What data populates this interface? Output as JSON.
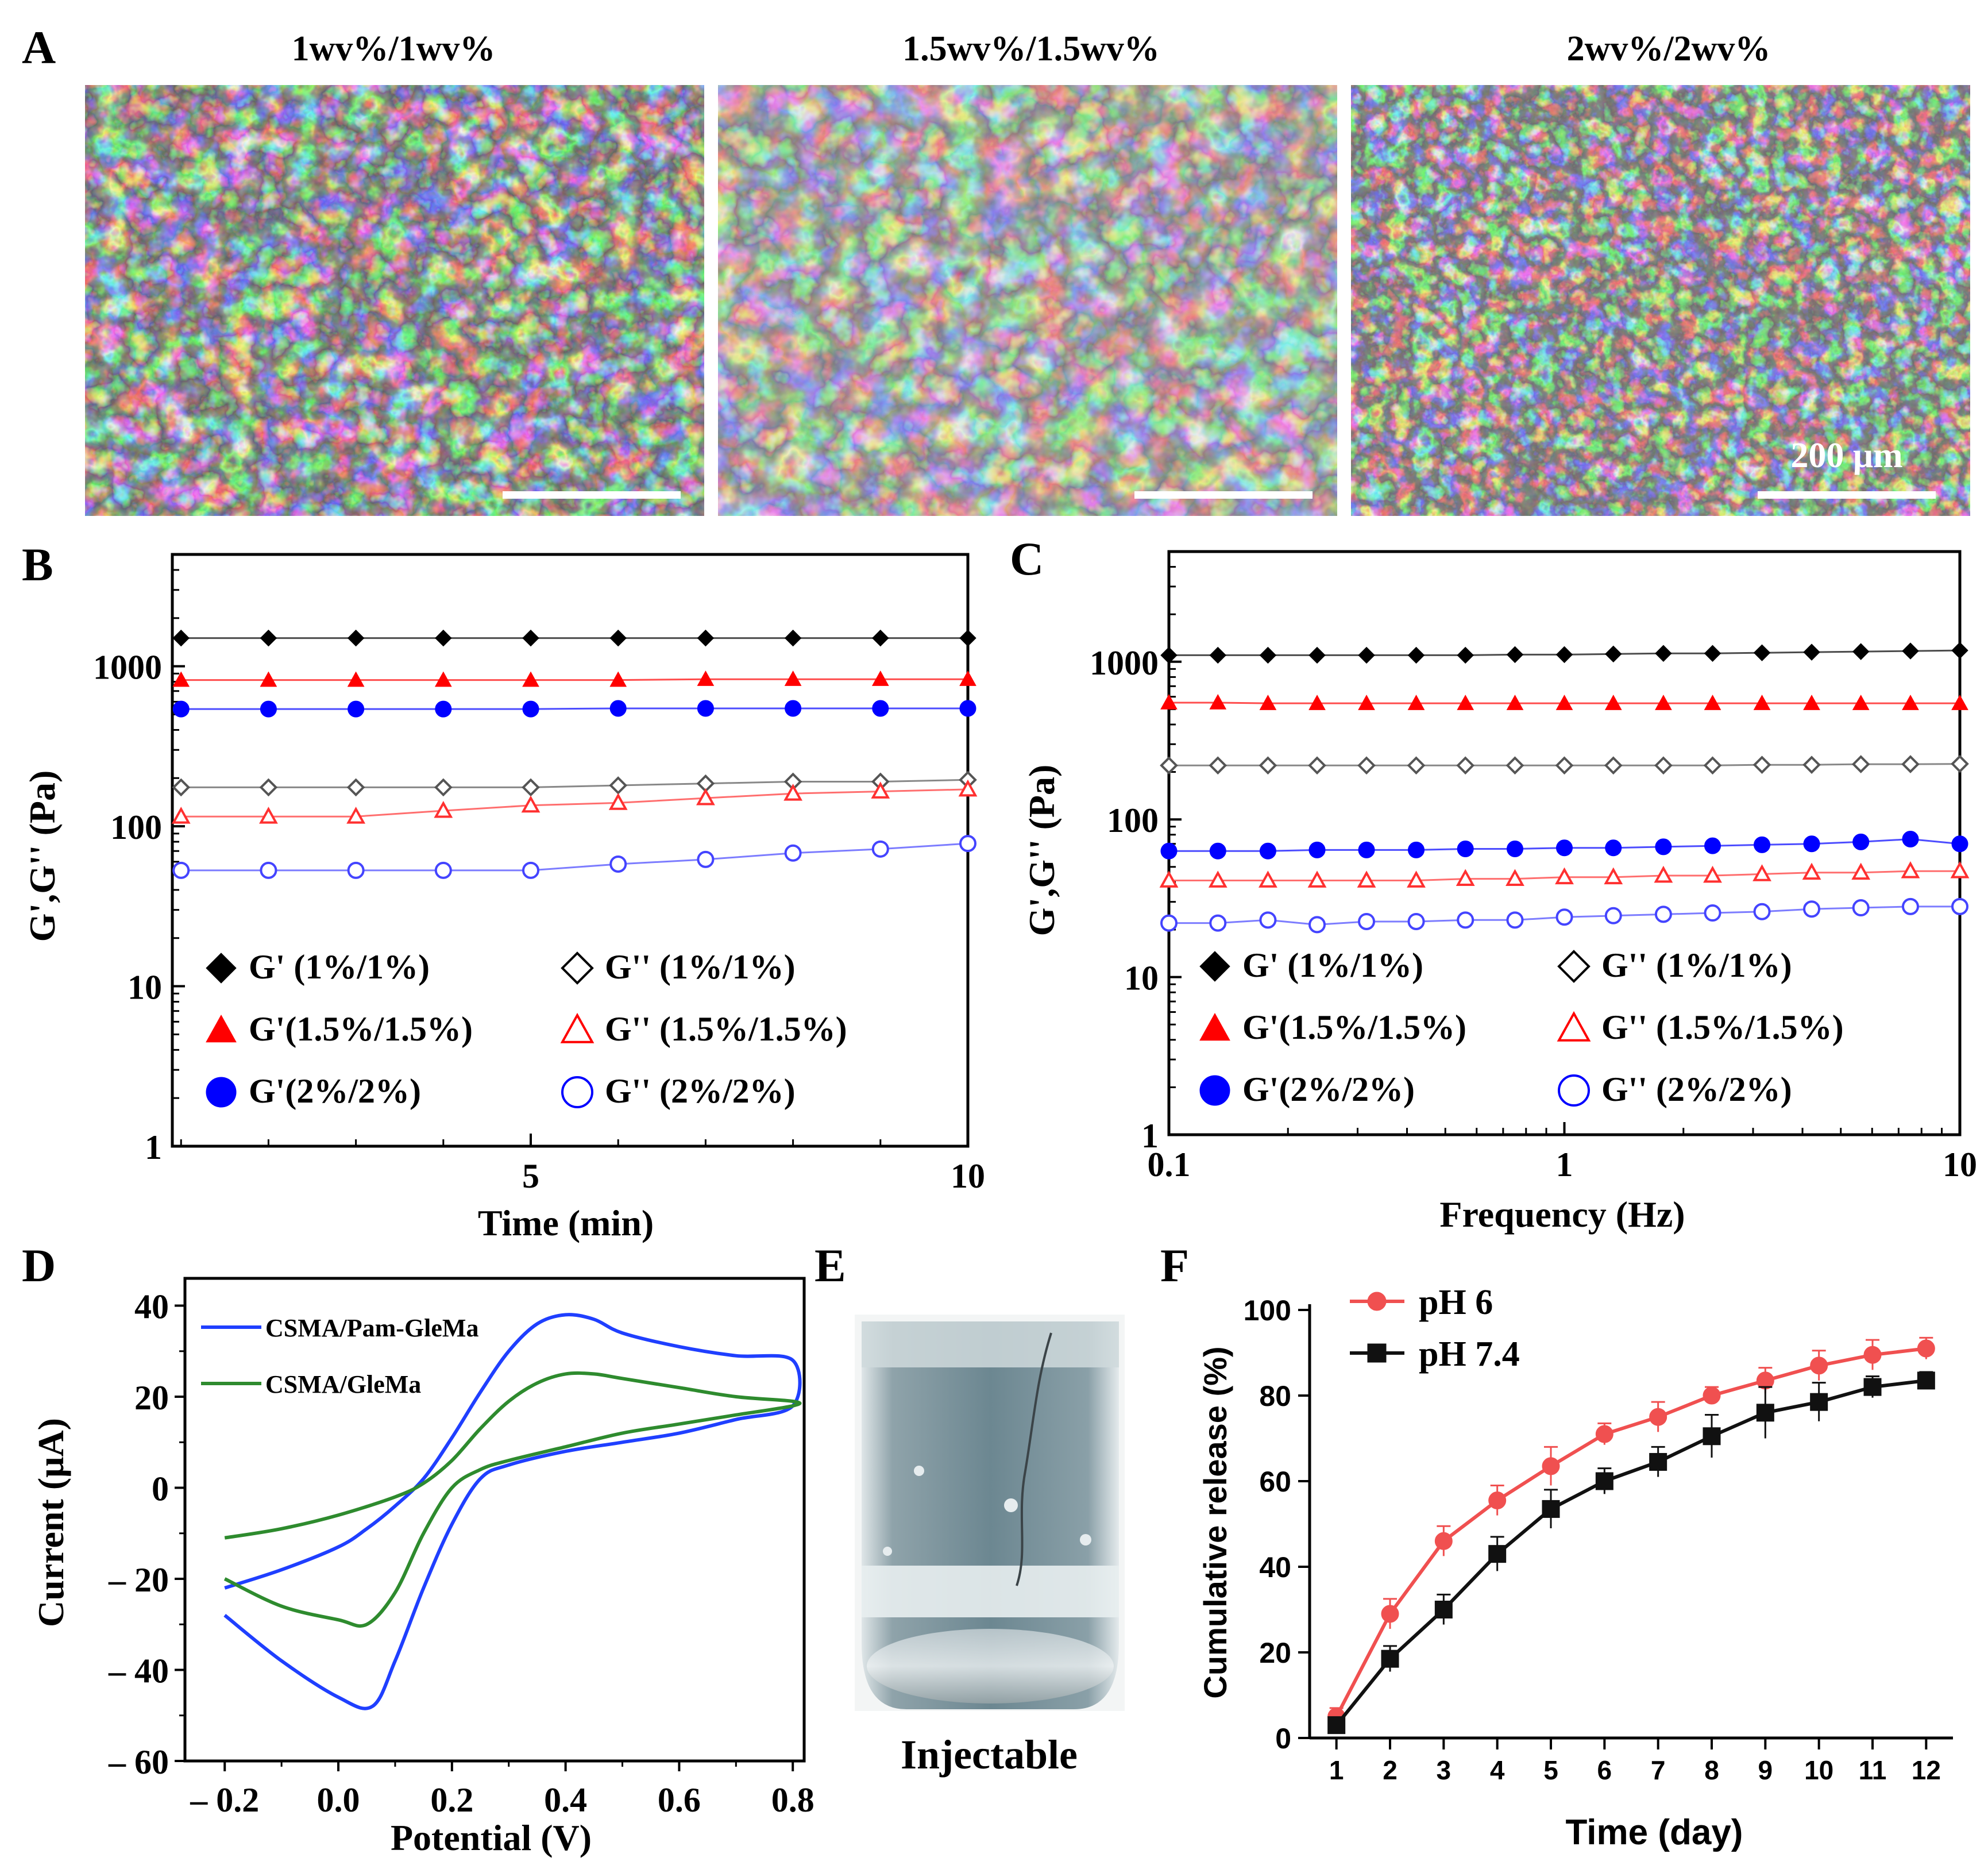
{
  "panel_labels": [
    "A",
    "B",
    "C",
    "D",
    "E",
    "F"
  ],
  "panel_a": {
    "titles": [
      "1wv%/1wv%",
      "1.5wv%/1.5wv%",
      "2wv%/2wv%"
    ],
    "scale_label": "200 μm"
  },
  "panel_e": {
    "caption": "Injectable"
  },
  "colors": {
    "black": "#000000",
    "red": "#ff0000",
    "blue": "#0000ff",
    "cv_blue": "#1f3fff",
    "cv_green": "#2e8b2e",
    "f_red": "#f05050",
    "f_black": "#111111"
  },
  "chart_data": [
    {
      "panel": "B",
      "type": "line",
      "xlabel": "Time (min)",
      "ylabel": "G',G'' (Pa)",
      "xlim": [
        0.9,
        10
      ],
      "ylim": [
        1,
        5000
      ],
      "y_scale": "log",
      "xticks": [
        5,
        10
      ],
      "yticks": [
        1,
        10,
        100,
        1000
      ],
      "legend": [
        "G' (1%/1%)",
        "G'' (1%/1%)",
        "G'(1.5%/1.5%)",
        "G'' (1.5%/1.5%)",
        "G'(2%/2%)",
        "G'' (2%/2%)"
      ],
      "x": [
        1,
        2,
        3,
        4,
        5,
        6,
        7,
        8,
        9,
        10
      ],
      "series": [
        {
          "name": "G' (1%/1%)",
          "marker": "diamond",
          "filled": true,
          "color": "#000000",
          "values": [
            1500,
            1500,
            1500,
            1500,
            1500,
            1500,
            1500,
            1500,
            1500,
            1500
          ]
        },
        {
          "name": "G'(1.5%/1.5%)",
          "marker": "triangle",
          "filled": true,
          "color": "#ff0000",
          "values": [
            820,
            820,
            820,
            820,
            820,
            820,
            830,
            830,
            830,
            830
          ]
        },
        {
          "name": "G'(2%/2%)",
          "marker": "circle",
          "filled": true,
          "color": "#0000ff",
          "values": [
            540,
            540,
            540,
            540,
            540,
            545,
            545,
            545,
            545,
            545
          ]
        },
        {
          "name": "G'' (1%/1%)",
          "marker": "diamond",
          "filled": false,
          "color": "#555555",
          "values": [
            175,
            175,
            175,
            175,
            175,
            180,
            185,
            190,
            190,
            195
          ]
        },
        {
          "name": "G'' (1.5%/1.5%)",
          "marker": "triangle",
          "filled": false,
          "color": "#ff3030",
          "values": [
            115,
            115,
            115,
            125,
            135,
            140,
            150,
            160,
            165,
            170
          ]
        },
        {
          "name": "G'' (2%/2%)",
          "marker": "circle",
          "filled": false,
          "color": "#4444ff",
          "values": [
            53,
            53,
            53,
            53,
            53,
            58,
            62,
            68,
            72,
            78
          ]
        }
      ]
    },
    {
      "panel": "C",
      "type": "line",
      "xlabel": "Frequency (Hz)",
      "ylabel": "G',G'' (Pa)",
      "xlim": [
        0.1,
        10
      ],
      "ylim": [
        1,
        5000
      ],
      "x_scale": "log",
      "y_scale": "log",
      "xticks": [
        0.1,
        1,
        10
      ],
      "yticks": [
        1,
        10,
        100,
        1000
      ],
      "legend": [
        "G' (1%/1%)",
        "G'' (1%/1%)",
        "G'(1.5%/1.5%)",
        "G'' (1.5%/1.5%)",
        "G'(2%/2%)",
        "G'' (2%/2%)"
      ],
      "x": [
        0.1,
        0.133,
        0.178,
        0.237,
        0.316,
        0.422,
        0.562,
        0.75,
        1.0,
        1.33,
        1.78,
        2.37,
        3.16,
        4.22,
        5.62,
        7.5,
        10
      ],
      "series": [
        {
          "name": "G' (1%/1%)",
          "marker": "diamond",
          "filled": true,
          "color": "#000000",
          "values": [
            1100,
            1100,
            1100,
            1100,
            1100,
            1100,
            1100,
            1110,
            1110,
            1120,
            1130,
            1130,
            1140,
            1150,
            1160,
            1170,
            1180
          ]
        },
        {
          "name": "G'(1.5%/1.5%)",
          "marker": "triangle",
          "filled": true,
          "color": "#ff0000",
          "values": [
            550,
            550,
            545,
            545,
            545,
            545,
            545,
            545,
            545,
            545,
            545,
            545,
            545,
            545,
            545,
            545,
            545
          ]
        },
        {
          "name": "G'' (1%/1%)",
          "marker": "diamond",
          "filled": false,
          "color": "#555555",
          "values": [
            220,
            220,
            220,
            220,
            220,
            220,
            220,
            220,
            220,
            220,
            220,
            220,
            222,
            222,
            224,
            224,
            225
          ]
        },
        {
          "name": "G'(2%/2%)",
          "marker": "circle",
          "filled": true,
          "color": "#0000ff",
          "values": [
            63,
            63,
            63,
            64,
            64,
            64,
            65,
            65,
            66,
            66,
            67,
            68,
            69,
            70,
            72,
            75,
            70
          ]
        },
        {
          "name": "G'' (1.5%/1.5%)",
          "marker": "triangle",
          "filled": false,
          "color": "#ff3030",
          "values": [
            41,
            41,
            41,
            41,
            41,
            41,
            42,
            42,
            43,
            43,
            44,
            44,
            45,
            46,
            46,
            47,
            47
          ]
        },
        {
          "name": "G'' (2%/2%)",
          "marker": "circle",
          "filled": false,
          "color": "#4444ff",
          "values": [
            22,
            22,
            23,
            21.5,
            22.5,
            22.5,
            23,
            23,
            24,
            24.5,
            25,
            25.5,
            26,
            27,
            27.5,
            28,
            28
          ]
        }
      ]
    },
    {
      "panel": "D",
      "type": "line",
      "xlabel": "Potential (V)",
      "ylabel": "Current (μA)",
      "xlim": [
        -0.27,
        0.82
      ],
      "ylim": [
        -60,
        46
      ],
      "xticks": [
        -0.2,
        0.0,
        0.2,
        0.4,
        0.6,
        0.8
      ],
      "xtick_labels": [
        "– 0.2",
        "0.0",
        "0.2",
        "0.4",
        "0.6",
        "0.8"
      ],
      "yticks": [
        -60,
        -40,
        -20,
        0,
        20,
        40
      ],
      "ytick_labels": [
        "– 60",
        "– 40",
        "– 20",
        "0",
        "20",
        "40"
      ],
      "series": [
        {
          "name": "CSMA/Pam-GleMa",
          "color": "#1f3fff",
          "x": [
            -0.2,
            -0.1,
            0.0,
            0.05,
            0.1,
            0.15,
            0.2,
            0.25,
            0.3,
            0.35,
            0.4,
            0.45,
            0.5,
            0.6,
            0.7,
            0.8,
            0.8,
            0.7,
            0.6,
            0.5,
            0.4,
            0.3,
            0.25,
            0.2,
            0.15,
            0.1,
            0.06,
            0.0,
            -0.1,
            -0.2
          ],
          "y": [
            -22,
            -18,
            -13,
            -9,
            -4,
            2,
            11,
            21,
            30,
            36,
            38,
            37,
            34,
            31,
            29,
            28,
            18,
            15,
            12,
            10,
            8,
            5,
            2,
            -8,
            -22,
            -38,
            -48,
            -46,
            -38,
            -28
          ]
        },
        {
          "name": "CSMA/GleMa",
          "color": "#2e8b2e",
          "x": [
            -0.2,
            -0.1,
            0.0,
            0.1,
            0.15,
            0.2,
            0.25,
            0.3,
            0.35,
            0.4,
            0.45,
            0.5,
            0.6,
            0.7,
            0.8,
            0.8,
            0.7,
            0.6,
            0.5,
            0.4,
            0.3,
            0.25,
            0.2,
            0.15,
            0.1,
            0.05,
            0.0,
            -0.1,
            -0.2
          ],
          "y": [
            -11,
            -9,
            -6,
            -2,
            1,
            6,
            13,
            19,
            23,
            25,
            25,
            24,
            22,
            20,
            19,
            18,
            16,
            14,
            12,
            9,
            6,
            4,
            0,
            -10,
            -23,
            -30,
            -29,
            -26,
            -20
          ]
        }
      ]
    },
    {
      "panel": "F",
      "type": "line",
      "xlabel": "Time (day)",
      "ylabel": "Cumulative release  (%)",
      "xlim": [
        0.5,
        12.5
      ],
      "ylim": [
        0,
        100
      ],
      "xticks": [
        1,
        2,
        3,
        4,
        5,
        6,
        7,
        8,
        9,
        10,
        11,
        12
      ],
      "yticks": [
        0,
        20,
        40,
        60,
        80,
        100
      ],
      "x": [
        1,
        2,
        3,
        4,
        5,
        6,
        7,
        8,
        9,
        10,
        11,
        12
      ],
      "series": [
        {
          "name": "pH 6",
          "marker": "circle",
          "color": "#f05050",
          "values": [
            5,
            29,
            46,
            55.5,
            63.5,
            71,
            75,
            80,
            83.5,
            87,
            89.5,
            91
          ],
          "errors": [
            2,
            3.5,
            3.5,
            3.5,
            4.5,
            2.5,
            3.5,
            2,
            3,
            3.5,
            3.5,
            2.5
          ]
        },
        {
          "name": "pH 7.4",
          "marker": "square",
          "color": "#111111",
          "values": [
            3,
            18.5,
            30,
            43,
            53.5,
            60,
            64.5,
            70.5,
            76,
            78.5,
            82,
            83.5
          ],
          "errors": [
            1.5,
            3,
            3.5,
            4,
            4.5,
            3,
            3.5,
            5,
            6,
            4.5,
            2.5,
            2
          ]
        }
      ]
    }
  ]
}
